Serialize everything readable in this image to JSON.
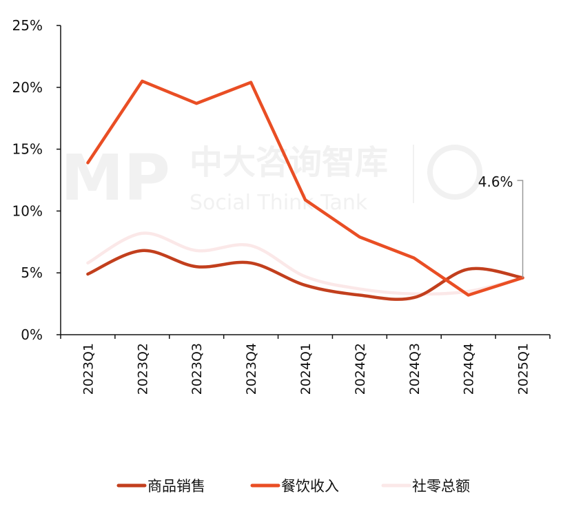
{
  "chart_data": {
    "type": "line",
    "categories": [
      "2023Q1",
      "2023Q2",
      "2023Q3",
      "2023Q4",
      "2024Q1",
      "2024Q2",
      "2024Q3",
      "2024Q4",
      "2025Q1"
    ],
    "ylim": [
      0,
      25
    ],
    "yticks": [
      "0%",
      "5%",
      "10%",
      "15%",
      "20%",
      "25%"
    ],
    "ytick_values": [
      0,
      5,
      10,
      15,
      20,
      25
    ],
    "grid": false,
    "legend_position": "bottom",
    "series": [
      {
        "name": "商品销售",
        "color": "#C23F1D",
        "smooth": true,
        "values": [
          4.9,
          6.8,
          5.5,
          5.8,
          4.0,
          3.2,
          3.0,
          5.3,
          4.6
        ]
      },
      {
        "name": "餐饮收入",
        "color": "#E94E24",
        "smooth": false,
        "values": [
          13.9,
          20.5,
          18.7,
          20.4,
          10.9,
          7.9,
          6.2,
          3.2,
          4.6
        ]
      },
      {
        "name": "社零总额",
        "color": "#FBE8E8",
        "smooth": true,
        "values": [
          5.8,
          8.2,
          6.8,
          7.2,
          4.7,
          3.7,
          3.3,
          3.5,
          4.6
        ]
      }
    ],
    "annotation": {
      "text": "4.6%",
      "category": "2025Q1",
      "value": 4.6
    }
  },
  "watermark": {
    "logo": "MP",
    "cn": "中大咨询智库",
    "en": "Social Think Tank"
  }
}
